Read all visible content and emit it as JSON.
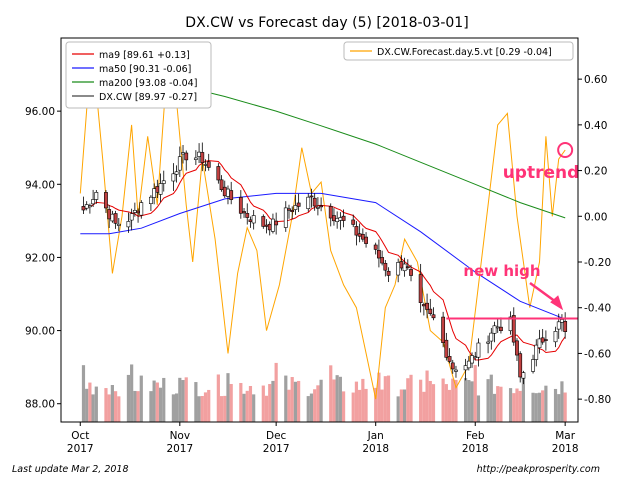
{
  "chart_data": {
    "type": "candlestick",
    "title": "DX.CW vs Forecast day (5)  [2018-03-01]",
    "footer_left": "Last update Mar  2, 2018",
    "footer_right": "http://peakprosperity.com",
    "x_axis": {
      "range": [
        "2017-09-25",
        "2018-03-05"
      ],
      "ticks": [
        {
          "date": "2017-10-01",
          "label1": "Oct",
          "label2": "2017"
        },
        {
          "date": "2017-11-01",
          "label1": "Nov",
          "label2": "2017"
        },
        {
          "date": "2017-12-01",
          "label1": "Dec",
          "label2": "2017"
        },
        {
          "date": "2018-01-01",
          "label1": "Jan",
          "label2": "2018"
        },
        {
          "date": "2018-02-01",
          "label1": "Feb",
          "label2": "2018"
        },
        {
          "date": "2018-03-01",
          "label1": "Mar",
          "label2": "2018"
        }
      ]
    },
    "y_left": {
      "range": [
        87.5,
        98.0
      ],
      "ticks": [
        {
          "v": 88,
          "label": "88.00"
        },
        {
          "v": 90,
          "label": "90.00"
        },
        {
          "v": 92,
          "label": "92.00"
        },
        {
          "v": 94,
          "label": "94.00"
        },
        {
          "v": 96,
          "label": "96.00"
        }
      ]
    },
    "y_right": {
      "range": [
        -0.9,
        0.78
      ],
      "ticks": [
        {
          "v": 0.6,
          "label": "0.60"
        },
        {
          "v": 0.4,
          "label": "0.40"
        },
        {
          "v": 0.2,
          "label": "0.20"
        },
        {
          "v": 0.0,
          "label": "0.00"
        },
        {
          "v": -0.2,
          "label": "-0.20"
        },
        {
          "v": -0.4,
          "label": "-0.40"
        },
        {
          "v": -0.6,
          "label": "-0.60"
        },
        {
          "v": -0.8,
          "label": "-0.80"
        }
      ]
    },
    "legend_left": [
      {
        "label": "ma9 [89.61 +0.13]",
        "color": "#e60000"
      },
      {
        "label": "ma50 [90.31 -0.06]",
        "color": "#1a1aff"
      },
      {
        "label": "ma200 [93.08 -0.04]",
        "color": "#1a8c1a"
      },
      {
        "label": "DX.CW [89.97 -0.27]",
        "color": "#444444"
      }
    ],
    "legend_right": [
      {
        "label": "DX.CW.Forecast.day.5.vt [0.29 -0.04]",
        "color": "#ffa500"
      }
    ],
    "annotations": {
      "uptrend": {
        "text": "uptrend",
        "color": "#ff3377",
        "circle_at": {
          "date": "2018-03-01",
          "value": 0.29
        }
      },
      "new_high": {
        "text": "new high",
        "color": "#ff3377",
        "arrow_to": {
          "date": "2018-03-01",
          "price": 90.5
        }
      },
      "hline": {
        "price": 90.33,
        "from": "2018-01-23",
        "color": "#ff3377"
      }
    },
    "colors": {
      "up": "#ffffff",
      "down": "#c04040",
      "wick": "#000000",
      "volume_gray": "#a0a0a0",
      "volume_pink": "#f2a0a0"
    },
    "anchors": [
      [
        "2017-10-02",
        93.3
      ],
      [
        "2017-10-06",
        93.8
      ],
      [
        "2017-10-12",
        92.9
      ],
      [
        "2017-10-17",
        93.1
      ],
      [
        "2017-10-20",
        93.5
      ],
      [
        "2017-10-25",
        93.9
      ],
      [
        "2017-10-31",
        94.5
      ],
      [
        "2017-11-03",
        94.8
      ],
      [
        "2017-11-08",
        94.7
      ],
      [
        "2017-11-15",
        93.8
      ],
      [
        "2017-11-21",
        93.2
      ],
      [
        "2017-11-27",
        92.9
      ],
      [
        "2017-11-30",
        92.9
      ],
      [
        "2017-12-05",
        93.3
      ],
      [
        "2017-12-12",
        93.6
      ],
      [
        "2017-12-15",
        93.4
      ],
      [
        "2017-12-20",
        93.1
      ],
      [
        "2017-12-27",
        92.6
      ],
      [
        "2018-01-02",
        92.0
      ],
      [
        "2018-01-05",
        91.6
      ],
      [
        "2018-01-10",
        91.9
      ],
      [
        "2018-01-15",
        90.6
      ],
      [
        "2018-01-19",
        90.3
      ],
      [
        "2018-01-25",
        89.0
      ],
      [
        "2018-01-30",
        89.1
      ],
      [
        "2018-02-02",
        89.5
      ],
      [
        "2018-02-07",
        90.1
      ],
      [
        "2018-02-12",
        90.2
      ],
      [
        "2018-02-15",
        88.7
      ],
      [
        "2018-02-20",
        89.5
      ],
      [
        "2018-02-23",
        89.9
      ],
      [
        "2018-03-01",
        90.3
      ]
    ],
    "ma200_points": [
      [
        "2017-11-01",
        96.7
      ],
      [
        "2017-11-15",
        96.4
      ],
      [
        "2017-12-01",
        96.0
      ],
      [
        "2017-12-15",
        95.6
      ],
      [
        "2018-01-01",
        95.1
      ],
      [
        "2018-01-15",
        94.6
      ],
      [
        "2018-02-01",
        94.0
      ],
      [
        "2018-02-15",
        93.5
      ],
      [
        "2018-03-01",
        93.08
      ]
    ],
    "ma50_points": [
      [
        "2017-10-01",
        92.65
      ],
      [
        "2017-10-10",
        92.65
      ],
      [
        "2017-10-20",
        92.8
      ],
      [
        "2017-11-01",
        93.2
      ],
      [
        "2017-11-15",
        93.6
      ],
      [
        "2017-12-01",
        93.75
      ],
      [
        "2017-12-15",
        93.75
      ],
      [
        "2018-01-01",
        93.5
      ],
      [
        "2018-01-15",
        92.7
      ],
      [
        "2018-02-01",
        91.6
      ],
      [
        "2018-02-15",
        90.8
      ],
      [
        "2018-03-01",
        90.31
      ]
    ],
    "forecast_points": [
      [
        "2017-10-01",
        0.1
      ],
      [
        "2017-10-04",
        0.65
      ],
      [
        "2017-10-06",
        0.55
      ],
      [
        "2017-10-08",
        0.25
      ],
      [
        "2017-10-11",
        -0.25
      ],
      [
        "2017-10-14",
        0.0
      ],
      [
        "2017-10-17",
        0.4
      ],
      [
        "2017-10-19",
        0.0
      ],
      [
        "2017-10-22",
        0.35
      ],
      [
        "2017-10-25",
        0.05
      ],
      [
        "2017-10-28",
        0.65
      ],
      [
        "2017-10-31",
        0.5
      ],
      [
        "2017-11-03",
        0.05
      ],
      [
        "2017-11-05",
        -0.2
      ],
      [
        "2017-11-08",
        0.25
      ],
      [
        "2017-11-12",
        -0.1
      ],
      [
        "2017-11-16",
        -0.6
      ],
      [
        "2017-11-19",
        -0.25
      ],
      [
        "2017-11-22",
        -0.05
      ],
      [
        "2017-11-25",
        -0.15
      ],
      [
        "2017-11-28",
        -0.5
      ],
      [
        "2017-12-02",
        -0.3
      ],
      [
        "2017-12-06",
        0.0
      ],
      [
        "2017-12-09",
        0.3
      ],
      [
        "2017-12-12",
        0.1
      ],
      [
        "2017-12-15",
        0.15
      ],
      [
        "2017-12-18",
        -0.15
      ],
      [
        "2017-12-22",
        -0.3
      ],
      [
        "2017-12-26",
        -0.4
      ],
      [
        "2017-12-29",
        -0.6
      ],
      [
        "2018-01-01",
        -0.8
      ],
      [
        "2018-01-04",
        -0.4
      ],
      [
        "2018-01-07",
        -0.3
      ],
      [
        "2018-01-10",
        -0.1
      ],
      [
        "2018-01-14",
        -0.2
      ],
      [
        "2018-01-18",
        -0.5
      ],
      [
        "2018-01-22",
        -0.55
      ],
      [
        "2018-01-26",
        -0.75
      ],
      [
        "2018-01-30",
        -0.65
      ],
      [
        "2018-02-02",
        -0.3
      ],
      [
        "2018-02-05",
        0.05
      ],
      [
        "2018-02-08",
        0.4
      ],
      [
        "2018-02-11",
        0.45
      ],
      [
        "2018-02-14",
        0.0
      ],
      [
        "2018-02-18",
        -0.4
      ],
      [
        "2018-02-21",
        -0.2
      ],
      [
        "2018-02-23",
        0.35
      ],
      [
        "2018-02-25",
        0.0
      ],
      [
        "2018-02-27",
        0.25
      ],
      [
        "2018-03-01",
        0.29
      ]
    ]
  }
}
